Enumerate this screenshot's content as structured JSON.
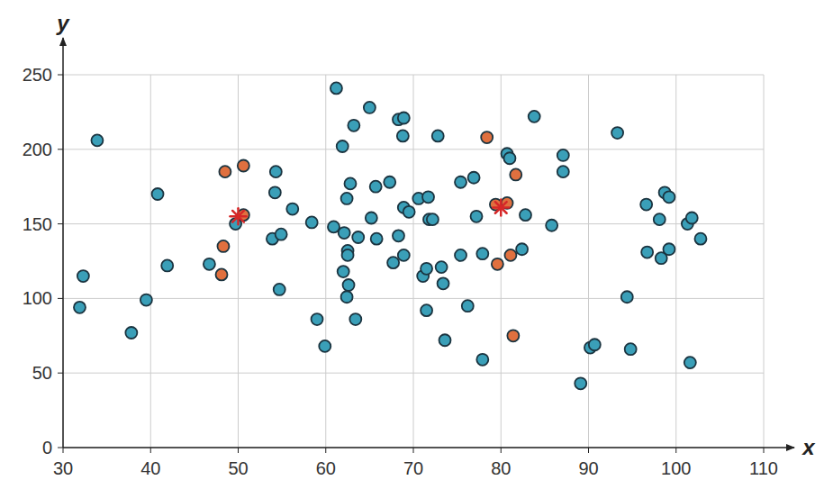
{
  "chart_data": {
    "type": "scatter",
    "x_label": "x",
    "y_label": "y",
    "xlim": [
      30,
      110
    ],
    "xticks": [
      30,
      40,
      50,
      60,
      70,
      80,
      90,
      100,
      110
    ],
    "ylim": [
      0,
      250
    ],
    "yticks": [
      0,
      50,
      100,
      150,
      200,
      250
    ],
    "grid": true,
    "series": [
      {
        "color": "#3a9fb8",
        "marker": "circle",
        "x": [
          31.9,
          32.3,
          33.9,
          37.8,
          39.5,
          40.8,
          41.9,
          46.7,
          49.7,
          54.3,
          54.2,
          53.9,
          54.9,
          54.7,
          56.2,
          58.4,
          59.0,
          59.9,
          61.2,
          61.9,
          60.9,
          62.1,
          62.0,
          62.4,
          62.8,
          62.5,
          62.5,
          62.6,
          62.4,
          63.2,
          63.7,
          63.4,
          65.0,
          65.2,
          65.7,
          65.8,
          67.3,
          67.7,
          68.3,
          68.9,
          68.8,
          68.3,
          68.9,
          68.9,
          69.5,
          70.6,
          71.1,
          71.5,
          71.7,
          71.8,
          72.2,
          71.5,
          72.8,
          73.2,
          73.4,
          73.6,
          75.4,
          75.4,
          76.2,
          76.9,
          77.2,
          77.9,
          77.9,
          83.8,
          80.7,
          81.0,
          82.8,
          82.4,
          85.8,
          87.1,
          87.1,
          93.3,
          94.4,
          90.2,
          90.7,
          89.1,
          94.8,
          96.6,
          96.7,
          98.1,
          98.3,
          98.7,
          99.2,
          99.2,
          101.3,
          101.8,
          101.6,
          102.8
        ],
        "values": [
          94,
          115,
          206,
          77,
          99,
          170,
          122,
          123,
          150,
          185,
          171,
          140,
          143,
          106,
          160,
          151,
          86,
          68,
          241,
          202,
          148,
          144,
          118,
          167,
          177,
          132,
          129,
          109,
          101,
          216,
          141,
          86,
          228,
          154,
          175,
          140,
          178,
          124,
          220,
          221,
          209,
          142,
          129,
          161,
          158,
          167,
          115,
          120,
          168,
          153,
          153,
          92,
          209,
          121,
          110,
          72,
          178,
          129,
          95,
          181,
          155,
          130,
          59,
          222,
          197,
          194,
          156,
          133,
          149,
          196,
          185,
          211,
          101,
          67,
          69,
          43,
          66,
          163,
          131,
          153,
          127,
          171,
          168,
          133,
          150,
          154,
          57,
          140
        ]
      },
      {
        "color": "#e0703f",
        "marker": "circle",
        "x": [
          48.5,
          50.6,
          48.3,
          48.1,
          50.6,
          78.4,
          81.7,
          79.4,
          80.7,
          79.6,
          81.1,
          81.4
        ],
        "values": [
          185,
          189,
          135,
          116,
          156,
          208,
          183,
          163,
          164,
          123,
          129,
          75
        ]
      },
      {
        "color": "#d62728",
        "marker": "asterisk",
        "x": [
          50,
          80
        ],
        "values": [
          155,
          161
        ]
      }
    ]
  }
}
